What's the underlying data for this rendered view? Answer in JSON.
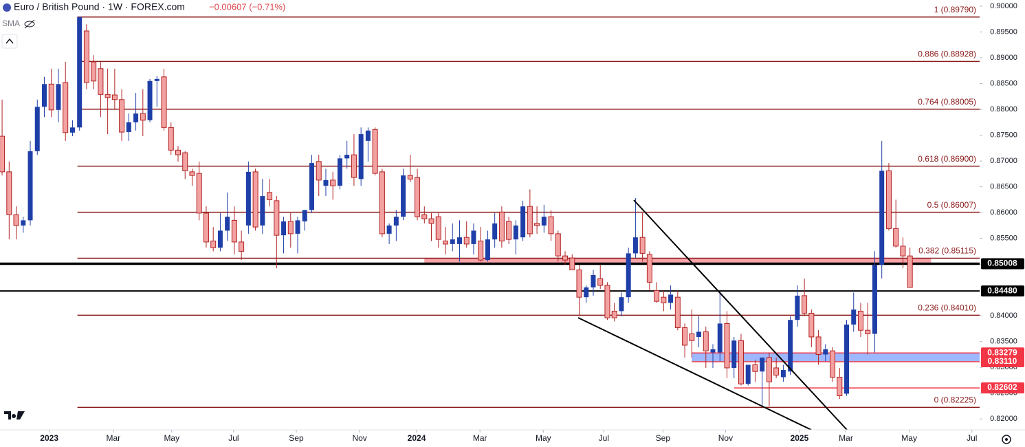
{
  "chart_data": {
    "type": "candlestick",
    "title": "Euro / British Pound · 1W · FOREX.com",
    "change": "−0.00607 (−0.71%)",
    "indicator": "SMA",
    "up_color": "#1f3fa8",
    "down_color": "#f3a2a2",
    "down_border": "#b22222",
    "fib_color": "#8b1a1a",
    "ylim": [
      0.8179,
      0.9012
    ],
    "yticks": [
      {
        "value": 0.82,
        "label": "0.82000"
      },
      {
        "value": 0.825,
        "label": "0.82500"
      },
      {
        "value": 0.83,
        "label": "0.83000"
      },
      {
        "value": 0.835,
        "label": "0.83500"
      },
      {
        "value": 0.84,
        "label": "0.84000"
      },
      {
        "value": 0.845,
        "label": "0.84500"
      },
      {
        "value": 0.85,
        "label": "0.85000"
      },
      {
        "value": 0.855,
        "label": "0.85500"
      },
      {
        "value": 0.86,
        "label": "0.86000"
      },
      {
        "value": 0.865,
        "label": "0.86500"
      },
      {
        "value": 0.87,
        "label": "0.87000"
      },
      {
        "value": 0.875,
        "label": "0.87500"
      },
      {
        "value": 0.88,
        "label": "0.88000"
      },
      {
        "value": 0.885,
        "label": "0.88500"
      },
      {
        "value": 0.89,
        "label": "0.89000"
      },
      {
        "value": 0.895,
        "label": "0.89500"
      },
      {
        "value": 0.9,
        "label": "0.90000"
      }
    ],
    "xlim": [
      -0.3,
      138.9
    ],
    "xticks": [
      {
        "value": 6.7,
        "label": "2023"
      },
      {
        "value": 15.8,
        "label": "Mar"
      },
      {
        "value": 24.1,
        "label": "May"
      },
      {
        "value": 32.9,
        "label": "Jul"
      },
      {
        "value": 41.8,
        "label": "Sep"
      },
      {
        "value": 50.8,
        "label": "Nov"
      },
      {
        "value": 58.9,
        "label": "2024"
      },
      {
        "value": 67.9,
        "label": "Mar"
      },
      {
        "value": 76.9,
        "label": "May"
      },
      {
        "value": 85.5,
        "label": "Jul"
      },
      {
        "value": 93.9,
        "label": "Sep"
      },
      {
        "value": 102.8,
        "label": "Nov"
      },
      {
        "value": 113.3,
        "label": "2025"
      },
      {
        "value": 119.9,
        "label": "Mar"
      },
      {
        "value": 128.9,
        "label": "May"
      },
      {
        "value": 137.8,
        "label": "Jul"
      }
    ],
    "fib_levels": [
      {
        "value": 0.8979,
        "label": "1 (0.89790)"
      },
      {
        "value": 0.88928,
        "label": "0.886 (0.88928)"
      },
      {
        "value": 0.88005,
        "label": "0.764 (0.88005)"
      },
      {
        "value": 0.869,
        "label": "0.618 (0.86900)"
      },
      {
        "value": 0.86007,
        "label": "0.5 (0.86007)"
      },
      {
        "value": 0.85115,
        "label": "0.382 (0.85115)"
      },
      {
        "value": 0.8401,
        "label": "0.236 (0.84010)"
      },
      {
        "value": 0.82225,
        "label": "0 (0.82225)"
      }
    ],
    "levels": [
      {
        "value": 0.85008,
        "label": "0.85008",
        "color": "#000000"
      },
      {
        "value": 0.8448,
        "label": "0.84480",
        "color": "#000000"
      },
      {
        "value": 0.83279,
        "label": "0.83279",
        "color": "#f23645"
      },
      {
        "value": 0.8311,
        "label": "0.83110",
        "color": "#f23645"
      },
      {
        "value": 0.82602,
        "label": "0.82602",
        "color": "#f23645"
      }
    ],
    "candles": [
      [
        0.8748,
        0.8819,
        0.8672,
        0.8679
      ],
      [
        0.8679,
        0.8699,
        0.8548,
        0.8596
      ],
      [
        0.8596,
        0.8612,
        0.8548,
        0.8575
      ],
      [
        0.8575,
        0.8592,
        0.8561,
        0.8585
      ],
      [
        0.8585,
        0.8739,
        0.8575,
        0.8719
      ],
      [
        0.8719,
        0.8819,
        0.8712,
        0.8805
      ],
      [
        0.8805,
        0.8863,
        0.8785,
        0.8849
      ],
      [
        0.8849,
        0.8879,
        0.8785,
        0.8799
      ],
      [
        0.8799,
        0.8879,
        0.8775,
        0.8849
      ],
      [
        0.8852,
        0.8892,
        0.8739,
        0.8755
      ],
      [
        0.8755,
        0.8779,
        0.8748,
        0.8765
      ],
      [
        0.8765,
        0.8979,
        0.8759,
        0.8979
      ],
      [
        0.8952,
        0.8965,
        0.8839,
        0.8852
      ],
      [
        0.8892,
        0.8905,
        0.8839,
        0.8855
      ],
      [
        0.8879,
        0.8892,
        0.8785,
        0.8829
      ],
      [
        0.8829,
        0.8879,
        0.8752,
        0.8823
      ],
      [
        0.8828,
        0.8879,
        0.8799,
        0.8819
      ],
      [
        0.8819,
        0.8839,
        0.8739,
        0.8756
      ],
      [
        0.8756,
        0.8792,
        0.8739,
        0.8775
      ],
      [
        0.8775,
        0.8832,
        0.8759,
        0.8792
      ],
      [
        0.8792,
        0.8839,
        0.8748,
        0.8779
      ],
      [
        0.8779,
        0.8859,
        0.8775,
        0.8855
      ],
      [
        0.8855,
        0.8865,
        0.8805,
        0.8859
      ],
      [
        0.8863,
        0.8879,
        0.8759,
        0.8765
      ],
      [
        0.8765,
        0.8775,
        0.8712,
        0.8721
      ],
      [
        0.8721,
        0.8729,
        0.8699,
        0.8712
      ],
      [
        0.8716,
        0.8719,
        0.8665,
        0.8681
      ],
      [
        0.8679,
        0.8685,
        0.8652,
        0.8672
      ],
      [
        0.8676,
        0.8699,
        0.8585,
        0.8599
      ],
      [
        0.8599,
        0.8612,
        0.8532,
        0.8543
      ],
      [
        0.8545,
        0.8572,
        0.8525,
        0.8532
      ],
      [
        0.8532,
        0.8599,
        0.8525,
        0.8565
      ],
      [
        0.8565,
        0.8639,
        0.8545,
        0.8592
      ],
      [
        0.8585,
        0.8612,
        0.8519,
        0.8543
      ],
      [
        0.8543,
        0.8565,
        0.8508,
        0.8525
      ],
      [
        0.8575,
        0.8699,
        0.8559,
        0.8679
      ],
      [
        0.8679,
        0.8685,
        0.8565,
        0.8572
      ],
      [
        0.8575,
        0.8665,
        0.8559,
        0.8632
      ],
      [
        0.8639,
        0.8665,
        0.8612,
        0.8625
      ],
      [
        0.8623,
        0.8632,
        0.8492,
        0.8556
      ],
      [
        0.8556,
        0.8592,
        0.8521,
        0.8583
      ],
      [
        0.8583,
        0.8599,
        0.8532,
        0.8559
      ],
      [
        0.8559,
        0.8592,
        0.8521,
        0.8585
      ],
      [
        0.8583,
        0.8605,
        0.8565,
        0.8605
      ],
      [
        0.8605,
        0.8712,
        0.8599,
        0.8696
      ],
      [
        0.8699,
        0.8712,
        0.8632,
        0.8663
      ],
      [
        0.8652,
        0.8685,
        0.8632,
        0.8663
      ],
      [
        0.8663,
        0.8679,
        0.8625,
        0.8652
      ],
      [
        0.8652,
        0.8712,
        0.8645,
        0.8705
      ],
      [
        0.8705,
        0.8739,
        0.8685,
        0.8712
      ],
      [
        0.8712,
        0.8752,
        0.8652,
        0.8668
      ],
      [
        0.8665,
        0.8765,
        0.8652,
        0.8752
      ],
      [
        0.8739,
        0.8765,
        0.8699,
        0.8759
      ],
      [
        0.8761,
        0.8765,
        0.8672,
        0.8676
      ],
      [
        0.8679,
        0.8685,
        0.8552,
        0.8559
      ],
      [
        0.8559,
        0.8579,
        0.8539,
        0.8575
      ],
      [
        0.8575,
        0.8605,
        0.8545,
        0.8592
      ],
      [
        0.8592,
        0.8685,
        0.8585,
        0.8672
      ],
      [
        0.8672,
        0.8712,
        0.8659,
        0.8665
      ],
      [
        0.8668,
        0.8685,
        0.8585,
        0.8592
      ],
      [
        0.8596,
        0.8612,
        0.8579,
        0.8588
      ],
      [
        0.8588,
        0.8599,
        0.8545,
        0.8579
      ],
      [
        0.8592,
        0.8599,
        0.8532,
        0.8548
      ],
      [
        0.8545,
        0.8572,
        0.8519,
        0.8539
      ],
      [
        0.8539,
        0.8579,
        0.8525,
        0.8548
      ],
      [
        0.8539,
        0.8585,
        0.8505,
        0.8552
      ],
      [
        0.8552,
        0.8583,
        0.8532,
        0.8539
      ],
      [
        0.8539,
        0.8579,
        0.8519,
        0.8565
      ],
      [
        0.8545,
        0.8572,
        0.8505,
        0.8508
      ],
      [
        0.8508,
        0.8565,
        0.8505,
        0.8548
      ],
      [
        0.8548,
        0.8599,
        0.8532,
        0.8579
      ],
      [
        0.8601,
        0.8612,
        0.8532,
        0.8545
      ],
      [
        0.8583,
        0.8592,
        0.8539,
        0.8548
      ],
      [
        0.8548,
        0.8585,
        0.8519,
        0.8575
      ],
      [
        0.8552,
        0.8623,
        0.8545,
        0.8612
      ],
      [
        0.8612,
        0.8645,
        0.8552,
        0.8559
      ],
      [
        0.8579,
        0.8612,
        0.8559,
        0.8575
      ],
      [
        0.8575,
        0.8615,
        0.8561,
        0.8592
      ],
      [
        0.8592,
        0.8605,
        0.8545,
        0.8559
      ],
      [
        0.8559,
        0.8565,
        0.8505,
        0.8516
      ],
      [
        0.8516,
        0.8525,
        0.8499,
        0.8508
      ],
      [
        0.8512,
        0.8519,
        0.8489,
        0.8489
      ],
      [
        0.8489,
        0.8499,
        0.8399,
        0.8436
      ],
      [
        0.8436,
        0.8459,
        0.8425,
        0.8455
      ],
      [
        0.8455,
        0.8489,
        0.8439,
        0.8479
      ],
      [
        0.8472,
        0.8499,
        0.8452,
        0.8459
      ],
      [
        0.8459,
        0.8465,
        0.8392,
        0.8396
      ],
      [
        0.8409,
        0.8425,
        0.8389,
        0.8396
      ],
      [
        0.8409,
        0.8445,
        0.8399,
        0.8436
      ],
      [
        0.8436,
        0.8532,
        0.8425,
        0.8521
      ],
      [
        0.8521,
        0.8628,
        0.8512,
        0.8552
      ],
      [
        0.8552,
        0.8599,
        0.8505,
        0.8521
      ],
      [
        0.8519,
        0.8525,
        0.8449,
        0.8465
      ],
      [
        0.8449,
        0.8465,
        0.8425,
        0.8428
      ],
      [
        0.8436,
        0.8449,
        0.8409,
        0.8425
      ],
      [
        0.8425,
        0.8459,
        0.8412,
        0.8441
      ],
      [
        0.8436,
        0.8449,
        0.8372,
        0.8377
      ],
      [
        0.8377,
        0.8385,
        0.8319,
        0.8343
      ],
      [
        0.8365,
        0.8412,
        0.8319,
        0.8352
      ],
      [
        0.8359,
        0.8399,
        0.8339,
        0.8369
      ],
      [
        0.8369,
        0.8379,
        0.8299,
        0.8332
      ],
      [
        0.8329,
        0.8345,
        0.8299,
        0.8335
      ],
      [
        0.8329,
        0.8445,
        0.8312,
        0.8385
      ],
      [
        0.8385,
        0.8409,
        0.8279,
        0.8299
      ],
      [
        0.8299,
        0.8359,
        0.8279,
        0.8352
      ],
      [
        0.8352,
        0.8365,
        0.8265,
        0.8268
      ],
      [
        0.8268,
        0.8305,
        0.8265,
        0.8305
      ],
      [
        0.8305,
        0.8315,
        0.8272,
        0.8292
      ],
      [
        0.8292,
        0.8312,
        0.8223,
        0.8319
      ],
      [
        0.8319,
        0.8329,
        0.8225,
        0.8272
      ],
      [
        0.8299,
        0.8319,
        0.8279,
        0.8285
      ],
      [
        0.8281,
        0.8305,
        0.8272,
        0.8295
      ],
      [
        0.8292,
        0.8399,
        0.8285,
        0.8392
      ],
      [
        0.8392,
        0.8459,
        0.8379,
        0.8439
      ],
      [
        0.8439,
        0.8472,
        0.8399,
        0.8405
      ],
      [
        0.8405,
        0.8412,
        0.8339,
        0.8359
      ],
      [
        0.8359,
        0.8372,
        0.8305,
        0.8325
      ],
      [
        0.8325,
        0.8345,
        0.8312,
        0.8335
      ],
      [
        0.8332,
        0.8339,
        0.8272,
        0.8281
      ],
      [
        0.8281,
        0.8299,
        0.8239,
        0.8245
      ],
      [
        0.8249,
        0.8392,
        0.8245,
        0.8383
      ],
      [
        0.8383,
        0.8445,
        0.8369,
        0.8412
      ],
      [
        0.8409,
        0.8425,
        0.8359,
        0.8372
      ],
      [
        0.8372,
        0.8425,
        0.8325,
        0.8365
      ],
      [
        0.8365,
        0.8525,
        0.8329,
        0.8499
      ],
      [
        0.8499,
        0.8739,
        0.8472,
        0.8681
      ],
      [
        0.8681,
        0.8696,
        0.8565,
        0.8569
      ],
      [
        0.8569,
        0.8625,
        0.8532,
        0.8535
      ],
      [
        0.8535,
        0.8552,
        0.8492,
        0.8516
      ],
      [
        0.8516,
        0.8532,
        0.8455,
        0.8455
      ]
    ]
  }
}
